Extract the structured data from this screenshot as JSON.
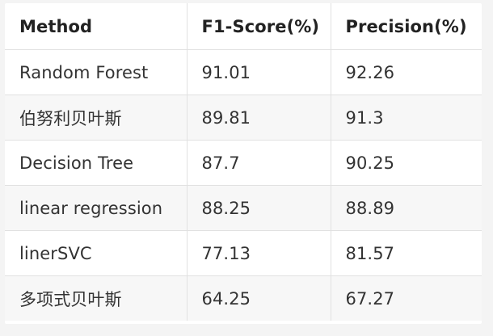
{
  "table": {
    "headers": [
      "Method",
      "F1-Score(%)",
      "Precision(%)"
    ],
    "rows": [
      [
        "Random Forest",
        "91.01",
        "92.26"
      ],
      [
        "伯努利贝叶斯",
        "89.81",
        "91.3"
      ],
      [
        "Decision Tree",
        "87.7",
        "90.25"
      ],
      [
        "linear regression",
        "88.25",
        "88.89"
      ],
      [
        "linerSVC",
        "77.13",
        "81.57"
      ],
      [
        "多项式贝叶斯",
        "64.25",
        "67.27"
      ]
    ]
  }
}
